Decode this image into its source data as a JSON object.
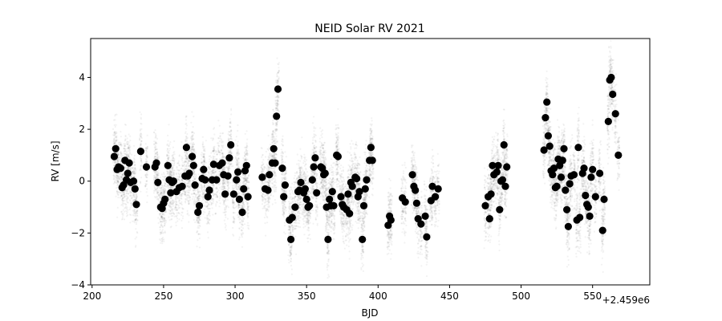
{
  "chart_data": {
    "type": "scatter",
    "title": "NEID Solar RV 2021",
    "xlabel": "BJD",
    "ylabel": "RV [m/s]",
    "x_offset_label": "+2.459e6",
    "xlim": [
      199,
      590
    ],
    "ylim": [
      -4,
      5.5
    ],
    "x_ticks": [
      200,
      250,
      300,
      350,
      400,
      450,
      500,
      550
    ],
    "y_ticks": [
      -4,
      -2,
      0,
      2,
      4
    ],
    "grid": false,
    "point_color": "#000000",
    "background_color": "#000000",
    "points": [
      [
        215.5,
        0.95
      ],
      [
        216.5,
        1.25
      ],
      [
        217.5,
        0.45
      ],
      [
        218.5,
        0.55
      ],
      [
        220,
        0.5
      ],
      [
        221,
        -0.25
      ],
      [
        222,
        -0.15
      ],
      [
        223,
        0.8
      ],
      [
        224,
        0.05
      ],
      [
        225,
        0.3
      ],
      [
        226,
        0.7
      ],
      [
        227,
        -0.05
      ],
      [
        229,
        0.0
      ],
      [
        230,
        -0.3
      ],
      [
        231,
        -0.9
      ],
      [
        234,
        1.15
      ],
      [
        238,
        0.55
      ],
      [
        244,
        0.55
      ],
      [
        245,
        0.7
      ],
      [
        246,
        -0.05
      ],
      [
        248,
        -1.0
      ],
      [
        249,
        -1.05
      ],
      [
        250,
        -0.85
      ],
      [
        251,
        -0.7
      ],
      [
        253,
        0.6
      ],
      [
        254,
        0.05
      ],
      [
        255,
        -0.45
      ],
      [
        256,
        -0.05
      ],
      [
        257,
        0.0
      ],
      [
        259,
        -0.4
      ],
      [
        261,
        -0.25
      ],
      [
        263,
        -0.2
      ],
      [
        265,
        0.2
      ],
      [
        266,
        1.3
      ],
      [
        267,
        0.2
      ],
      [
        268,
        0.3
      ],
      [
        270,
        0.95
      ],
      [
        271,
        0.6
      ],
      [
        272,
        -0.15
      ],
      [
        274,
        -1.2
      ],
      [
        275,
        -0.95
      ],
      [
        277,
        0.1
      ],
      [
        278,
        0.45
      ],
      [
        279,
        0.05
      ],
      [
        281,
        -0.6
      ],
      [
        282,
        -0.35
      ],
      [
        284,
        0.05
      ],
      [
        285,
        0.65
      ],
      [
        287,
        0.05
      ],
      [
        289,
        0.6
      ],
      [
        291,
        0.7
      ],
      [
        292,
        0.25
      ],
      [
        293,
        -0.5
      ],
      [
        295,
        0.2
      ],
      [
        296,
        0.9
      ],
      [
        297,
        1.4
      ],
      [
        299,
        -0.5
      ],
      [
        301,
        0.05
      ],
      [
        302,
        0.35
      ],
      [
        303,
        -0.7
      ],
      [
        305,
        -1.2
      ],
      [
        306,
        -0.3
      ],
      [
        307,
        0.4
      ],
      [
        308,
        0.6
      ],
      [
        309,
        -0.6
      ],
      [
        319,
        0.15
      ],
      [
        321,
        -0.3
      ],
      [
        323,
        -0.35
      ],
      [
        324,
        0.25
      ],
      [
        326,
        0.7
      ],
      [
        327,
        1.25
      ],
      [
        328,
        0.7
      ],
      [
        329,
        2.5
      ],
      [
        330,
        3.55
      ],
      [
        333,
        0.5
      ],
      [
        334,
        -0.6
      ],
      [
        335,
        -0.15
      ],
      [
        338,
        -1.5
      ],
      [
        339,
        -2.25
      ],
      [
        340,
        -1.4
      ],
      [
        342,
        -1.0
      ],
      [
        344,
        -0.4
      ],
      [
        345,
        -0.35
      ],
      [
        346,
        -0.05
      ],
      [
        348,
        -0.45
      ],
      [
        349,
        -0.3
      ],
      [
        350,
        -0.7
      ],
      [
        351,
        -1.0
      ],
      [
        352,
        -0.95
      ],
      [
        354,
        0.05
      ],
      [
        355,
        0.55
      ],
      [
        356,
        0.9
      ],
      [
        357,
        -0.45
      ],
      [
        360,
        0.55
      ],
      [
        361,
        0.5
      ],
      [
        362,
        0.25
      ],
      [
        363,
        0.3
      ],
      [
        364,
        -1.0
      ],
      [
        365,
        -2.25
      ],
      [
        366,
        -0.7
      ],
      [
        367,
        -0.95
      ],
      [
        368,
        -0.4
      ],
      [
        369,
        -0.95
      ],
      [
        371,
        1.0
      ],
      [
        372,
        0.95
      ],
      [
        374,
        -0.6
      ],
      [
        375,
        -0.9
      ],
      [
        376,
        -1.0
      ],
      [
        378,
        -1.1
      ],
      [
        379,
        -0.5
      ],
      [
        380,
        -1.25
      ],
      [
        381,
        -0.05
      ],
      [
        382,
        -0.2
      ],
      [
        384,
        0.15
      ],
      [
        385,
        0.1
      ],
      [
        386,
        -0.6
      ],
      [
        387,
        -0.4
      ],
      [
        389,
        -2.25
      ],
      [
        390,
        -0.95
      ],
      [
        391,
        -0.3
      ],
      [
        392,
        0.05
      ],
      [
        394,
        0.8
      ],
      [
        395,
        1.3
      ],
      [
        396,
        0.8
      ],
      [
        407,
        -1.7
      ],
      [
        408,
        -1.35
      ],
      [
        409,
        -1.5
      ],
      [
        417,
        -0.65
      ],
      [
        419,
        -0.8
      ],
      [
        424,
        0.25
      ],
      [
        425,
        -0.2
      ],
      [
        426,
        -0.35
      ],
      [
        427,
        -0.85
      ],
      [
        428,
        -1.45
      ],
      [
        430,
        -1.65
      ],
      [
        433,
        -1.35
      ],
      [
        434,
        -2.15
      ],
      [
        437,
        -0.75
      ],
      [
        438,
        -0.2
      ],
      [
        440,
        -0.6
      ],
      [
        442,
        -0.3
      ],
      [
        475,
        -0.95
      ],
      [
        477,
        -0.6
      ],
      [
        478,
        -1.45
      ],
      [
        479,
        -0.5
      ],
      [
        480,
        0.6
      ],
      [
        481,
        0.25
      ],
      [
        483,
        0.35
      ],
      [
        484,
        0.6
      ],
      [
        485,
        -1.1
      ],
      [
        486,
        0.0
      ],
      [
        487,
        0.05
      ],
      [
        488,
        1.4
      ],
      [
        489,
        -0.2
      ],
      [
        490,
        0.55
      ],
      [
        516,
        1.2
      ],
      [
        517,
        2.45
      ],
      [
        518,
        3.05
      ],
      [
        519,
        1.75
      ],
      [
        520,
        1.35
      ],
      [
        521,
        0.4
      ],
      [
        522,
        0.25
      ],
      [
        523,
        0.5
      ],
      [
        524,
        -0.25
      ],
      [
        525,
        -0.2
      ],
      [
        526,
        0.85
      ],
      [
        527,
        0.6
      ],
      [
        528,
        0.15
      ],
      [
        529,
        0.8
      ],
      [
        530,
        1.25
      ],
      [
        531,
        -0.35
      ],
      [
        532,
        -1.1
      ],
      [
        533,
        -1.75
      ],
      [
        534,
        -0.1
      ],
      [
        535,
        0.2
      ],
      [
        537,
        0.25
      ],
      [
        539,
        -1.5
      ],
      [
        540,
        1.3
      ],
      [
        541,
        -1.4
      ],
      [
        543,
        0.3
      ],
      [
        544,
        0.5
      ],
      [
        545,
        -0.55
      ],
      [
        546,
        -0.9
      ],
      [
        547,
        -1.0
      ],
      [
        548,
        -1.35
      ],
      [
        549,
        0.15
      ],
      [
        550,
        0.45
      ],
      [
        552,
        -0.6
      ],
      [
        555,
        0.3
      ],
      [
        557,
        -1.9
      ],
      [
        558,
        -0.7
      ],
      [
        561,
        2.3
      ],
      [
        562,
        3.9
      ],
      [
        563,
        4.0
      ],
      [
        564,
        3.35
      ],
      [
        566,
        2.6
      ],
      [
        568,
        1.0
      ]
    ]
  }
}
